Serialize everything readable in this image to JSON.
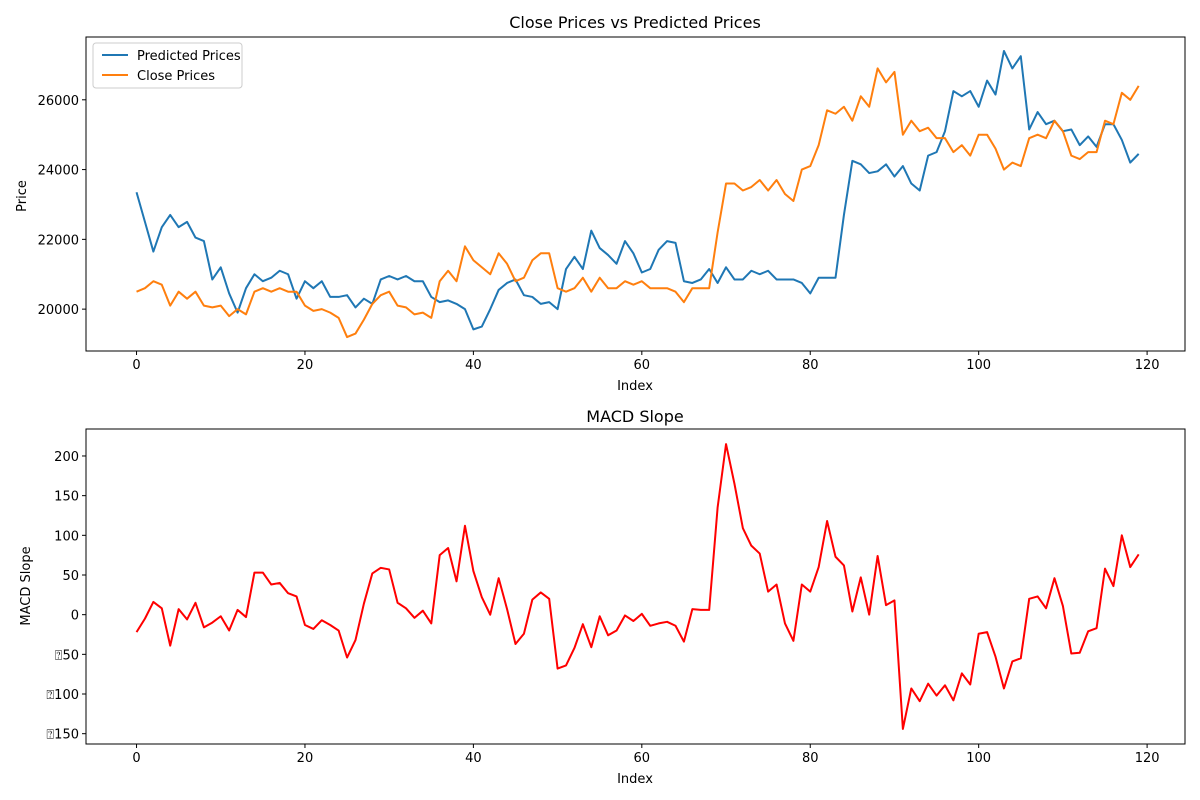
{
  "chart_data": [
    {
      "type": "line",
      "title": "Close Prices vs Predicted Prices",
      "xlabel": "Index",
      "ylabel": "Price",
      "xlim": [
        -6,
        124.5
      ],
      "ylim": [
        18800,
        27800
      ],
      "xticks": [
        0,
        20,
        40,
        60,
        80,
        100,
        120
      ],
      "xtick_labels": [
        "0",
        "20",
        "40",
        "60",
        "80",
        "100",
        "120"
      ],
      "yticks": [
        20000,
        22000,
        24000,
        26000
      ],
      "ytick_labels": [
        "20000",
        "22000",
        "24000",
        "26000"
      ],
      "legend_position": "top-left",
      "grid": false,
      "series": [
        {
          "name": "Predicted Prices",
          "color": "#1f77b4",
          "values": [
            23350,
            22500,
            21650,
            22350,
            22700,
            22350,
            22500,
            22050,
            21950,
            20850,
            21200,
            20450,
            19900,
            20600,
            21000,
            20800,
            20900,
            21100,
            21000,
            20300,
            20800,
            20600,
            20800,
            20350,
            20350,
            20400,
            20050,
            20300,
            20150,
            20850,
            20950,
            20850,
            20950,
            20800,
            20800,
            20350,
            20200,
            20250,
            20150,
            20000,
            19420,
            19500,
            20000,
            20550,
            20750,
            20850,
            20400,
            20350,
            20150,
            20200,
            20000,
            21150,
            21500,
            21150,
            22250,
            21750,
            21550,
            21300,
            21950,
            21600,
            21050,
            21150,
            21700,
            21950,
            21900,
            20800,
            20750,
            20850,
            21150,
            20750,
            21200,
            20850,
            20850,
            21100,
            21000,
            21100,
            20850,
            20850,
            20850,
            20750,
            20450,
            20900,
            20900,
            20900,
            22700,
            24250,
            24150,
            23900,
            23950,
            24150,
            23800,
            24100,
            23600,
            23400,
            24400,
            24500,
            25100,
            26250,
            26100,
            26250,
            25800,
            26550,
            26150,
            27400,
            26900,
            27250,
            25150,
            25650,
            25300,
            25400,
            25100,
            25150,
            24700,
            24950,
            24650,
            25300,
            25300,
            24850,
            24200,
            24450
          ]
        },
        {
          "name": "Close Prices",
          "color": "#ff7f0e",
          "values": [
            20500,
            20600,
            20800,
            20700,
            20100,
            20500,
            20300,
            20500,
            20100,
            20050,
            20100,
            19800,
            20000,
            19850,
            20500,
            20600,
            20500,
            20600,
            20500,
            20500,
            20100,
            19950,
            20000,
            19900,
            19750,
            19200,
            19300,
            19700,
            20150,
            20400,
            20500,
            20100,
            20050,
            19850,
            19900,
            19750,
            20800,
            21100,
            20800,
            21800,
            21400,
            21200,
            21000,
            21600,
            21300,
            20800,
            20900,
            21400,
            21600,
            21600,
            20600,
            20500,
            20600,
            20900,
            20500,
            20900,
            20600,
            20600,
            20800,
            20700,
            20800,
            20600,
            20600,
            20600,
            20500,
            20200,
            20600,
            20600,
            20600,
            22200,
            23600,
            23600,
            23400,
            23500,
            23700,
            23400,
            23700,
            23300,
            23100,
            24000,
            24100,
            24700,
            25700,
            25600,
            25800,
            25400,
            26100,
            25800,
            26900,
            26500,
            26800,
            25000,
            25400,
            25100,
            25200,
            24900,
            24900,
            24500,
            24700,
            24400,
            25000,
            25000,
            24600,
            24000,
            24200,
            24100,
            24900,
            25000,
            24900,
            25400,
            25100,
            24400,
            24300,
            24500,
            24500,
            25400,
            25300,
            26200,
            26000,
            26400
          ]
        }
      ]
    },
    {
      "type": "line",
      "title": "MACD Slope",
      "xlabel": "Index",
      "ylabel": "MACD Slope",
      "xlim": [
        -6,
        124.5
      ],
      "ylim": [
        -163,
        234
      ],
      "xticks": [
        0,
        20,
        40,
        60,
        80,
        100,
        120
      ],
      "xtick_labels": [
        "0",
        "20",
        "40",
        "60",
        "80",
        "100",
        "120"
      ],
      "yticks": [
        -150,
        -100,
        -50,
        0,
        50,
        100,
        150,
        200
      ],
      "ytick_labels": [
        "⍰150",
        "⍰100",
        "⍰50",
        "0",
        "50",
        "100",
        "150",
        "200"
      ],
      "grid": false,
      "series": [
        {
          "color": "#ff0000",
          "values": [
            -22,
            -5,
            16,
            8,
            -39,
            7,
            -6,
            15,
            -16,
            -10,
            -2,
            -20,
            6,
            -3,
            53,
            53,
            38,
            40,
            27,
            23,
            -13,
            -18,
            -7,
            -13,
            -20,
            -54,
            -32,
            14,
            52,
            59,
            57,
            15,
            8,
            -4,
            5,
            -11,
            75,
            84,
            42,
            112,
            55,
            22,
            0,
            46,
            7,
            -37,
            -24,
            19,
            28,
            20,
            -68,
            -64,
            -42,
            -12,
            -41,
            -2,
            -26,
            -20,
            -1,
            -8,
            1,
            -14,
            -11,
            -9,
            -14,
            -34,
            7,
            6,
            6,
            135,
            215,
            165,
            109,
            87,
            77,
            29,
            38,
            -11,
            -33,
            38,
            29,
            60,
            118,
            73,
            62,
            4,
            47,
            0,
            74,
            12,
            18,
            -144,
            -93,
            -109,
            -87,
            -102,
            -89,
            -108,
            -74,
            -88,
            -24,
            -22,
            -53,
            -93,
            -59,
            -55,
            20,
            23,
            8,
            46,
            11,
            -49,
            -48,
            -21,
            -17,
            58,
            36,
            100,
            60,
            76
          ]
        }
      ]
    }
  ]
}
